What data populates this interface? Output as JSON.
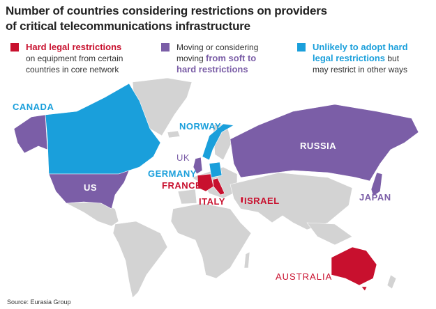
{
  "title_line1": "Number of countries considering restrictions on providers",
  "title_line2": "of critical telecommunications infrastructure",
  "colors": {
    "hard": "#c8102e",
    "moving": "#7b5ea7",
    "unlikely": "#1a9fdb",
    "other": "#d3d3d3"
  },
  "legend": [
    {
      "highlight": "Hard legal restrictions",
      "rest": "on equipment from certain countries in core network",
      "color": "#c8102e"
    },
    {
      "pre": "Moving or considering moving ",
      "highlight": "from soft to hard restrictions",
      "color": "#7b5ea7"
    },
    {
      "highlight": "Unlikely to adopt hard legal restrictions",
      "rest": " but may restrict in other ways",
      "color": "#1a9fdb"
    }
  ],
  "countries": {
    "canada": "CANADA",
    "norway": "NORWAY",
    "uk": "UK",
    "germany": "GERMANY",
    "france": "FRANCE",
    "italy": "ITALY",
    "israel": "ISRAEL",
    "russia": "RUSSIA",
    "japan": "JAPAN",
    "us": "US",
    "australia": "AUSTRALIA"
  },
  "source": "Source: Eurasia Group"
}
